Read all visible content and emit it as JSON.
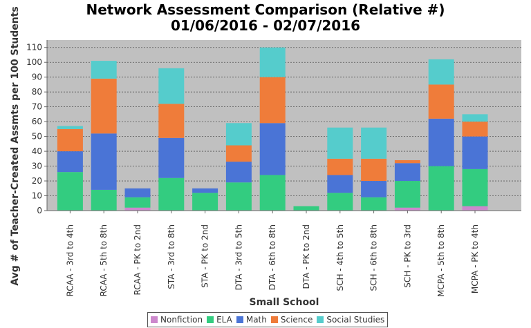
{
  "chart_data": {
    "type": "bar",
    "stacked": true,
    "title": "Network Assessment Comparison (Relative #)",
    "subtitle": "01/06/2016 - 02/07/2016",
    "xlabel": "Small School",
    "ylabel": "Avg # of Teacher-Created Assmts per 100 Students",
    "ylim": [
      0,
      115
    ],
    "yticks": [
      0,
      10,
      20,
      30,
      40,
      50,
      60,
      70,
      80,
      90,
      100,
      110
    ],
    "grid": true,
    "legend_position": "bottom",
    "categories": [
      "RCAA - 3rd to 4th",
      "RCAA - 5th to 8th",
      "RCAA - PK to 2nd",
      "STA - 3rd to 8th",
      "STA - PK to 2nd",
      "DTA - 3rd to 5th",
      "DTA - 6th to 8th",
      "DTA - PK to 2nd",
      "SCH - 4th to 5th",
      "SCH - 6th to 8th",
      "SCH - PK to 3rd",
      "MCPA - 5th to 8th",
      "MCPA - PK to 4th"
    ],
    "series": [
      {
        "name": "Nonfiction",
        "color": "#cc88cc",
        "values": [
          0,
          0,
          2,
          0,
          0,
          0,
          0,
          0,
          0,
          0,
          2,
          0,
          3
        ]
      },
      {
        "name": "ELA",
        "color": "#33cc80",
        "values": [
          26,
          14,
          7,
          22,
          12,
          19,
          24,
          3,
          12,
          9,
          18,
          30,
          25
        ]
      },
      {
        "name": "Math",
        "color": "#4a74d6",
        "values": [
          14,
          38,
          6,
          27,
          3,
          14,
          35,
          0,
          12,
          11,
          12,
          32,
          22
        ]
      },
      {
        "name": "Science",
        "color": "#ef7c3a",
        "values": [
          15,
          37,
          0,
          23,
          0,
          11,
          31,
          0,
          11,
          15,
          2,
          23,
          10
        ]
      },
      {
        "name": "Social Studies",
        "color": "#55cccc",
        "values": [
          2,
          12,
          0,
          24,
          0,
          15,
          20,
          0,
          21,
          21,
          0,
          17,
          5
        ]
      }
    ]
  }
}
